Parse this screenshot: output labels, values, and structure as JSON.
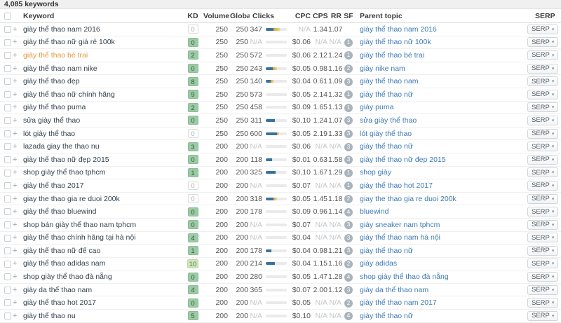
{
  "summary": {
    "count_label": "4,085 keywords"
  },
  "colors": {
    "kd_badge_green": "#9bcaa4",
    "kd_badge_gray": "#fdfdfd",
    "bar_blue": "#38749e",
    "bar_orange": "#dfa33c",
    "parent_link_blue": "#3d7ab5",
    "keyword_dark": "#33424e",
    "keyword_highlight_orange": "#e09a3e"
  },
  "table": {
    "headers": {
      "keyword": "Keyword",
      "kd": "KD",
      "volume": "Volume",
      "global": "Global",
      "clicks": "Clicks",
      "cpc": "CPC",
      "cps": "CPS",
      "rr": "RR",
      "sf": "SF",
      "parent": "Parent topic",
      "serp": "SERP"
    },
    "volume_sort_icon": "sort-descending",
    "serp_button_label": "SERP",
    "serp_button_caret": "▾",
    "rows": [
      {
        "keyword": "giày thể thao nam 2016",
        "kd": "0",
        "kd_variant": "gray",
        "volume": "250",
        "global": "250",
        "clicks": "347",
        "bar": [
          38,
          28
        ],
        "cpc": "N/A",
        "cps": "1.34",
        "rr": "1.07",
        "sf": "",
        "parent": "giày thể thao nam 2016"
      },
      {
        "keyword": "giày thể thao nữ giá rẻ 100k",
        "kd": "0",
        "kd_variant": "green",
        "volume": "250",
        "global": "250",
        "clicks": "N/A",
        "bar": [
          0,
          0
        ],
        "cpc": "$0.06",
        "cps": "N/A",
        "rr": "N/A",
        "sf": "1",
        "parent": "giày thể thao nữ 100k"
      },
      {
        "keyword": "giày thể thao bé trai",
        "highlighted": true,
        "kd": "2",
        "kd_variant": "green",
        "volume": "250",
        "global": "250",
        "clicks": "572",
        "bar": [
          0,
          0
        ],
        "cpc": "$0.06",
        "cps": "2.12",
        "rr": "1.24",
        "sf": "1",
        "parent": "giày thể thao bé trai"
      },
      {
        "keyword": "giày thể thao nam nike",
        "kd": "0",
        "kd_variant": "green",
        "volume": "250",
        "global": "250",
        "clicks": "243",
        "bar": [
          33,
          22
        ],
        "cpc": "$0.05",
        "cps": "0.98",
        "rr": "1.16",
        "sf": "2",
        "parent": "giày nike nam"
      },
      {
        "keyword": "giày thể thao đẹp",
        "kd": "8",
        "kd_variant": "green",
        "volume": "250",
        "global": "250",
        "clicks": "140",
        "bar": [
          22,
          14
        ],
        "cpc": "$0.04",
        "cps": "0.61",
        "rr": "1.09",
        "sf": "3",
        "parent": "giày thể thao nam"
      },
      {
        "keyword": "giày thể thao nữ chính hãng",
        "kd": "9",
        "kd_variant": "green",
        "volume": "250",
        "global": "250",
        "clicks": "573",
        "bar": [
          0,
          0
        ],
        "cpc": "$0.05",
        "cps": "2.14",
        "rr": "1.32",
        "sf": "1",
        "parent": "giày thể thao nữ"
      },
      {
        "keyword": "giày thể thao puma",
        "kd": "2",
        "kd_variant": "green",
        "volume": "250",
        "global": "250",
        "clicks": "458",
        "bar": [
          0,
          0
        ],
        "cpc": "$0.09",
        "cps": "1.65",
        "rr": "1.13",
        "sf": "1",
        "parent": "giày puma"
      },
      {
        "keyword": "sửa giày thể thao",
        "kd": "0",
        "kd_variant": "green",
        "volume": "250",
        "global": "250",
        "clicks": "311",
        "bar": [
          42,
          0
        ],
        "cpc": "$0.10",
        "cps": "1.24",
        "rr": "1.07",
        "sf": "3",
        "parent": "sửa giày thể thao"
      },
      {
        "keyword": "lót giày thể thao",
        "kd": "0",
        "kd_variant": "gray",
        "volume": "250",
        "global": "250",
        "clicks": "600",
        "bar": [
          52,
          10
        ],
        "cpc": "$0.05",
        "cps": "2.19",
        "rr": "1.33",
        "sf": "3",
        "parent": "lót giày thể thao"
      },
      {
        "keyword": "lazada giay the thao nu",
        "kd": "3",
        "kd_variant": "green",
        "volume": "200",
        "global": "200",
        "clicks": "N/A",
        "bar": [
          0,
          0
        ],
        "cpc": "$0.06",
        "cps": "N/A",
        "rr": "N/A",
        "sf": "3",
        "parent": "giày thể thao nữ"
      },
      {
        "keyword": "giày thể thao nữ đẹp 2015",
        "kd": "0",
        "kd_variant": "green",
        "volume": "200",
        "global": "200",
        "clicks": "118",
        "bar": [
          30,
          0
        ],
        "cpc": "$0.01",
        "cps": "0.63",
        "rr": "1.58",
        "sf": "3",
        "parent": "giày thể thao nữ đẹp 2015"
      },
      {
        "keyword": "shop giày thể thao tphcm",
        "kd": "1",
        "kd_variant": "green",
        "volume": "200",
        "global": "200",
        "clicks": "325",
        "bar": [
          48,
          0
        ],
        "cpc": "$0.10",
        "cps": "1.67",
        "rr": "1.29",
        "sf": "1",
        "parent": "shop giày"
      },
      {
        "keyword": "giày thể thao 2017",
        "kd": "0",
        "kd_variant": "gray",
        "volume": "200",
        "global": "200",
        "clicks": "N/A",
        "bar": [
          0,
          0
        ],
        "cpc": "$0.07",
        "cps": "N/A",
        "rr": "N/A",
        "sf": "1",
        "parent": "giày thể thao hot 2017"
      },
      {
        "keyword": "giay the thao gia re duoi 200k",
        "kd": "0",
        "kd_variant": "gray",
        "volume": "200",
        "global": "200",
        "clicks": "318",
        "bar": [
          38,
          14
        ],
        "cpc": "$0.05",
        "cps": "1.45",
        "rr": "1.18",
        "sf": "2",
        "parent": "giay the thao gia re duoi 200k"
      },
      {
        "keyword": "giày thể thao bluewind",
        "kd": "0",
        "kd_variant": "green",
        "volume": "200",
        "global": "200",
        "clicks": "178",
        "bar": [
          0,
          0
        ],
        "cpc": "$0.09",
        "cps": "0.96",
        "rr": "1.14",
        "sf": "4",
        "parent": "bluewind"
      },
      {
        "keyword": "shop bán giày thể thao nam tphcm",
        "kd": "0",
        "kd_variant": "green",
        "volume": "200",
        "global": "200",
        "clicks": "N/A",
        "bar": [
          0,
          0
        ],
        "cpc": "$0.07",
        "cps": "N/A",
        "rr": "N/A",
        "sf": "3",
        "parent": "giày sneaker nam tphcm"
      },
      {
        "keyword": "giày thể thao chính hãng tại hà nội",
        "kd": "4",
        "kd_variant": "green",
        "volume": "200",
        "global": "200",
        "clicks": "N/A",
        "bar": [
          0,
          0
        ],
        "cpc": "$0.04",
        "cps": "N/A",
        "rr": "N/A",
        "sf": "3",
        "parent": "giày thể thao nam hà nội"
      },
      {
        "keyword": "giày thể thao nữ đế cao",
        "kd": "1",
        "kd_variant": "green",
        "volume": "200",
        "global": "200",
        "clicks": "178",
        "bar": [
          28,
          0
        ],
        "cpc": "$0.04",
        "cps": "0.98",
        "rr": "1.21",
        "sf": "3",
        "parent": "giày thể thao nữ"
      },
      {
        "keyword": "giày thể thao adidas nam",
        "kd": "10",
        "kd_variant": "green-light",
        "volume": "200",
        "global": "200",
        "clicks": "214",
        "bar": [
          42,
          0
        ],
        "cpc": "$0.04",
        "cps": "1.15",
        "rr": "1.16",
        "sf": "2",
        "parent": "giày adidas"
      },
      {
        "keyword": "shop giày thể thao đà nẵng",
        "kd": "0",
        "kd_variant": "green",
        "volume": "200",
        "global": "200",
        "clicks": "280",
        "bar": [
          0,
          0
        ],
        "cpc": "$0.05",
        "cps": "1.47",
        "rr": "1.28",
        "sf": "4",
        "parent": "shop giày thể thao đà nẵng"
      },
      {
        "keyword": "giày da thể thao nam",
        "kd": "4",
        "kd_variant": "green",
        "volume": "200",
        "global": "200",
        "clicks": "365",
        "bar": [
          0,
          0
        ],
        "cpc": "$0.07",
        "cps": "2.00",
        "rr": "1.12",
        "sf": "3",
        "parent": "giày da thể thao nam"
      },
      {
        "keyword": "giày thể thao hot 2017",
        "kd": "0",
        "kd_variant": "green",
        "volume": "200",
        "global": "200",
        "clicks": "N/A",
        "bar": [
          0,
          0
        ],
        "cpc": "$0.05",
        "cps": "N/A",
        "rr": "N/A",
        "sf": "2",
        "parent": "giày thể thao nam 2017"
      },
      {
        "keyword": "giày thể thao nu",
        "kd": "5",
        "kd_variant": "green",
        "volume": "200",
        "global": "200",
        "clicks": "N/A",
        "bar": [
          0,
          0
        ],
        "cpc": "$0.10",
        "cps": "N/A",
        "rr": "N/A",
        "sf": "4",
        "parent": "giày thể thao nữ"
      }
    ]
  }
}
